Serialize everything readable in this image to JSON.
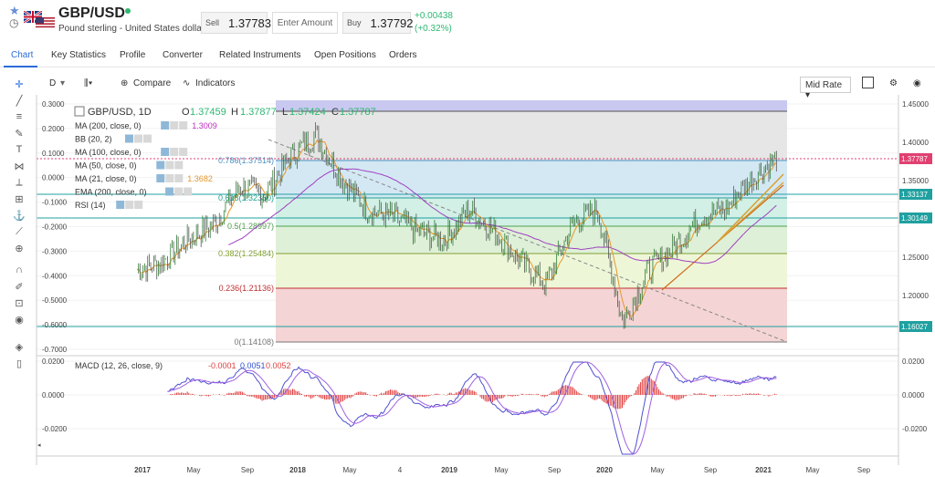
{
  "header": {
    "symbol": "GBP/USD",
    "description": "Pound sterling - United States dollar",
    "sell_label": "Sell",
    "sell_price": "1.37783",
    "amount_placeholder": "Enter Amount",
    "buy_label": "Buy",
    "buy_price": "1.37792",
    "change_abs": "+0.00438",
    "change_pct": "(+0.32%)"
  },
  "tabs": [
    {
      "label": "Chart",
      "active": true
    },
    {
      "label": "Key Statistics"
    },
    {
      "label": "Profile"
    },
    {
      "label": "Converter"
    },
    {
      "label": "Related Instruments"
    },
    {
      "label": "Open Positions"
    },
    {
      "label": "Orders"
    }
  ],
  "toolbar": {
    "interval": "D",
    "compare_label": "Compare",
    "indicators_label": "Indicators",
    "price_type": "Mid Rate"
  },
  "legend": {
    "title": "GBP/USD, 1D",
    "ohlc": {
      "o_label": "O",
      "o": "1.37459",
      "h_label": "H",
      "h": "1.37877",
      "l_label": "L",
      "l": "1.37424",
      "c_label": "C",
      "c": "1.37787"
    },
    "indicators": [
      {
        "name": "MA (200, close, 0)",
        "value": "1.3009",
        "color": "#c030c0"
      },
      {
        "name": "BB (20, 2)",
        "value": ""
      },
      {
        "name": "MA (100, close, 0)",
        "value": ""
      },
      {
        "name": "MA (50, close, 0)",
        "value": ""
      },
      {
        "name": "MA (21, close, 0)",
        "value": "1.3682",
        "color": "#e8962a"
      },
      {
        "name": "EMA (200, close, 0)",
        "value": ""
      },
      {
        "name": "RSI (14)",
        "value": ""
      }
    ],
    "macd": {
      "name": "MACD (12, 26, close, 9)",
      "v1": "-0.0001",
      "v2": "0.0051",
      "v3": "0.0052"
    }
  },
  "chart_data": {
    "type": "line",
    "left_axis_ticks": [
      "0.3000",
      "0.2000",
      "0.1000",
      "0.0000",
      "-0.1000",
      "-0.2000",
      "-0.3000",
      "-0.4000",
      "-0.5000",
      "-0.6000",
      "-0.7000"
    ],
    "right_axis_ticks": [
      "1.45000",
      "1.40000",
      "1.35000",
      "1.30000",
      "1.25000",
      "1.20000",
      "1.15000"
    ],
    "price_badges": [
      {
        "value": "1.37787",
        "color": "#e04070"
      },
      {
        "value": "1.33137",
        "color": "#20a0a0"
      },
      {
        "value": "1.30149",
        "color": "#20a0a0"
      },
      {
        "value": "1.16027",
        "color": "#20a0a0"
      }
    ],
    "fib_levels": [
      {
        "label": "0.786(1.37514)",
        "color": "#4a90c0"
      },
      {
        "label": "0.618(1.32350)",
        "color": "#20a090"
      },
      {
        "label": "0.5(1.28997)",
        "color": "#50a050"
      },
      {
        "label": "0.382(1.25484)",
        "color": "#80a030"
      },
      {
        "label": "0.236(1.21136)",
        "color": "#c03030"
      },
      {
        "label": "0(1.14108)",
        "color": "#777777"
      }
    ],
    "x_labels": [
      "2017",
      "May",
      "Sep",
      "2018",
      "May",
      "4",
      "2019",
      "May",
      "Sep",
      "2020",
      "May",
      "Sep",
      "2021",
      "May",
      "Sep"
    ],
    "macd_ticks": [
      "0.0200",
      "0.0000",
      "-0.0200"
    ],
    "ylim": [
      1.14,
      1.45
    ],
    "series": [
      {
        "x": [
          "2017-01",
          "2017-03",
          "2017-05",
          "2017-07",
          "2017-09",
          "2017-11",
          "2018-01",
          "2018-03",
          "2018-05",
          "2018-07",
          "2018-09",
          "2018-11",
          "2019-01",
          "2019-03",
          "2019-05",
          "2019-07",
          "2019-09",
          "2019-11",
          "2020-01",
          "2020-03",
          "2020-05",
          "2020-07",
          "2020-09",
          "2020-11",
          "2021-01",
          "2021-02"
        ],
        "values": [
          1.23,
          1.24,
          1.27,
          1.29,
          1.34,
          1.33,
          1.38,
          1.41,
          1.35,
          1.31,
          1.3,
          1.28,
          1.27,
          1.31,
          1.28,
          1.24,
          1.21,
          1.29,
          1.31,
          1.16,
          1.23,
          1.26,
          1.3,
          1.31,
          1.35,
          1.378
        ]
      }
    ]
  }
}
